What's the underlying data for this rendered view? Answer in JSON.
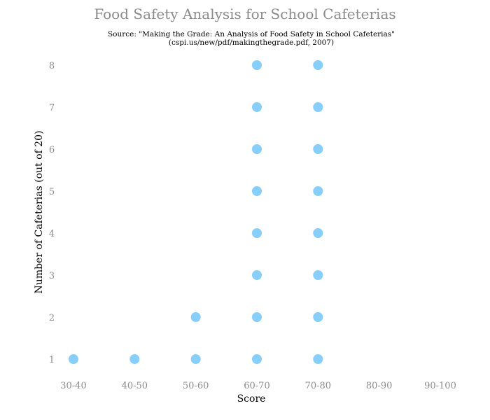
{
  "chart_data": {
    "type": "scatter",
    "title": "Food Safety Analysis for School Cafeterias",
    "subtitle_lines": [
      "Source: \"Making the Grade: An Analysis of Food Safety in School Cafeterias\"",
      "(cspi.us/new/pdf/makingthegrade.pdf, 2007)"
    ],
    "xlabel": "Score",
    "ylabel": "Number of Cafeterias (out of 20)",
    "categories": [
      "30-40",
      "40-50",
      "50-60",
      "60-70",
      "70-80",
      "80-90",
      "90-100"
    ],
    "counts": [
      1,
      1,
      2,
      8,
      8,
      0,
      0
    ],
    "y_ticks": [
      1,
      2,
      3,
      4,
      5,
      6,
      7,
      8
    ],
    "grid": false,
    "marker_color": "#87cefa",
    "title_color": "#8c8c8c",
    "tick_color": "#8c8c8c"
  }
}
